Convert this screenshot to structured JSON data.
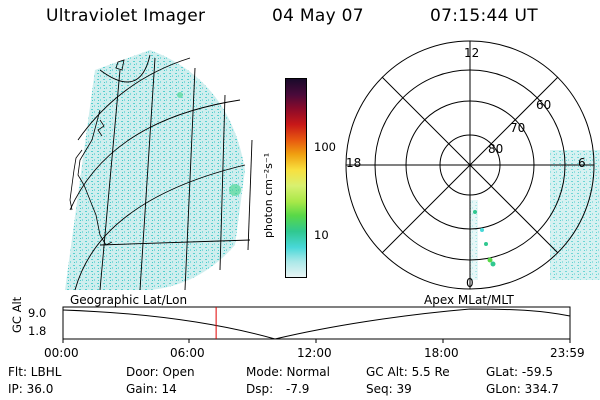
{
  "header": {
    "instrument": "Ultraviolet Imager",
    "date": "04 May 07",
    "time": "07:15:44 UT"
  },
  "map_label_left": "Geographic Lat/Lon",
  "map_label_right": "Apex MLat/MLT",
  "colorbar": {
    "unit_label": "photon cm⁻²s⁻¹",
    "ticks": [
      "100",
      "10"
    ],
    "colors": [
      "#1a0a2a",
      "#4a0a3a",
      "#8a0a2a",
      "#c81818",
      "#e85a10",
      "#f0a010",
      "#f8e040",
      "#d8f070",
      "#a8e848",
      "#58d848",
      "#30c890",
      "#48d8d8",
      "#a8e8e8",
      "#e8f4f4"
    ]
  },
  "polar": {
    "mlt_labels": [
      "12",
      "18",
      "6",
      "0"
    ],
    "mlat_labels": [
      "60",
      "70",
      "80"
    ]
  },
  "alt_plot": {
    "ylabel": "GC Alt",
    "ymax": "9.0",
    "ymin": "1.8",
    "x_ticks": [
      "00:00",
      "06:00",
      "12:00",
      "18:00",
      "23:59"
    ],
    "current_time_fraction": 0.302
  },
  "status": {
    "flt": "Flt: LBHL",
    "ip": "IP: 36.0",
    "door": "Door: Open",
    "gain": "Gain: 14",
    "mode": "Mode: Normal",
    "dsp_label": "Dsp:",
    "dsp_value": "-7.9",
    "gc_alt": "GC Alt: 5.5 Re",
    "seq": "Seq: 39",
    "glat": "GLat: -59.5",
    "glon": "GLon: 334.7"
  }
}
